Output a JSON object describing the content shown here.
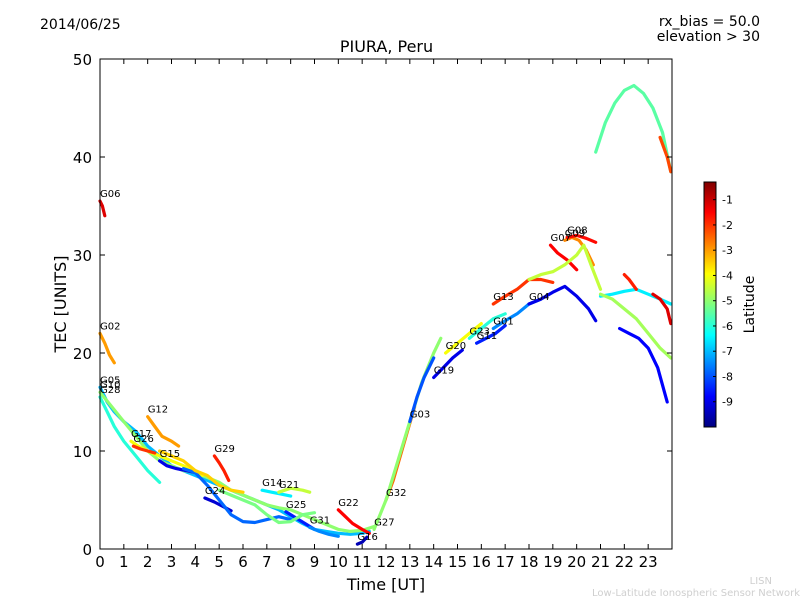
{
  "header": {
    "date": "2014/06/25",
    "title": "PIURA, Peru",
    "rx_bias": "rx_bias = 50.0",
    "elevation": "elevation > 30"
  },
  "credit": {
    "line1": "LISN",
    "line2": "Low-Latitude Ionospheric Sensor Network"
  },
  "colors": {
    "colormap": [
      "#00007f",
      "#0000ff",
      "#007fff",
      "#00ffff",
      "#7fff7f",
      "#ffff00",
      "#ff7f00",
      "#ff0000",
      "#7f0000"
    ]
  },
  "chart_data": {
    "type": "line",
    "title": "PIURA, Peru",
    "xlabel": "Time [UT]",
    "ylabel": "TEC [UNITS]",
    "xlim": [
      0,
      24
    ],
    "ylim": [
      0,
      50
    ],
    "xticks": [
      "0",
      "1",
      "2",
      "3",
      "4",
      "5",
      "6",
      "7",
      "8",
      "9",
      "10",
      "11",
      "12",
      "13",
      "14",
      "15",
      "16",
      "17",
      "18",
      "19",
      "20",
      "21",
      "22",
      "23"
    ],
    "yticks": [
      "0",
      "10",
      "20",
      "30",
      "40",
      "50"
    ],
    "colorbar": {
      "label": "Latitude",
      "range": [
        -10,
        -0.3
      ],
      "ticks": [
        "-1",
        "-2",
        "-3",
        "-4",
        "-5",
        "-6",
        "-7",
        "-8",
        "-9"
      ]
    },
    "series": [
      {
        "name": "G06",
        "lat": -1.2,
        "x": [
          0.0,
          0.1,
          0.2
        ],
        "y": [
          35.5,
          35.0,
          34.0
        ]
      },
      {
        "name": "G02",
        "lat": -3.0,
        "x": [
          0.0,
          0.2,
          0.4,
          0.6
        ],
        "y": [
          22.0,
          21.0,
          19.8,
          19.0
        ]
      },
      {
        "name": "G05",
        "lat": -7.0,
        "x": [
          0.0,
          0.3,
          0.6,
          1.0,
          1.5,
          2.0,
          2.5,
          3.0,
          3.5,
          4.0,
          4.5,
          5.0,
          5.5,
          6.0,
          6.5,
          7.0,
          7.5,
          8.0,
          8.5,
          9.0,
          9.5,
          10.0,
          10.5,
          11.0,
          11.3
        ],
        "y": [
          16.5,
          15.0,
          14.0,
          13.0,
          12.0,
          10.5,
          9.5,
          8.5,
          8.0,
          7.5,
          7.0,
          6.5,
          6.0,
          5.5,
          5.0,
          4.5,
          4.0,
          3.3,
          2.6,
          2.0,
          1.8,
          1.6,
          1.5,
          1.6,
          1.8
        ]
      },
      {
        "name": "G10",
        "lat": -5.0,
        "x": [
          0.0,
          0.5,
          1.0,
          1.5,
          2.0,
          2.5,
          3.0,
          3.5,
          4.0,
          4.5,
          5.0,
          5.5,
          6.0,
          6.5,
          7.0,
          7.5,
          8.0,
          8.5,
          9.0,
          9.5,
          10.0,
          10.5,
          11.0,
          11.5
        ],
        "y": [
          16.0,
          14.5,
          13.0,
          11.5,
          10.0,
          9.0,
          8.5,
          8.0,
          7.8,
          7.3,
          6.8,
          6.0,
          5.5,
          5.0,
          4.5,
          4.2,
          4.0,
          3.5,
          3.0,
          2.5,
          2.0,
          1.8,
          1.9,
          2.3
        ]
      },
      {
        "name": "G28",
        "lat": -6.0,
        "x": [
          0.0,
          0.3,
          0.6,
          1.0,
          1.5,
          2.0,
          2.5
        ],
        "y": [
          15.5,
          14.0,
          12.5,
          11.0,
          9.5,
          8.0,
          6.8
        ]
      },
      {
        "name": "G12",
        "lat": -3.0,
        "x": [
          2.0,
          2.3,
          2.6,
          3.0,
          3.3
        ],
        "y": [
          13.5,
          12.5,
          11.5,
          11.0,
          10.5
        ]
      },
      {
        "name": "G17",
        "lat": -4.0,
        "x": [
          1.3,
          1.6,
          2.0,
          2.5,
          3.0,
          3.5,
          4.0,
          4.3
        ],
        "y": [
          11.0,
          10.5,
          10.0,
          9.5,
          9.0,
          8.5,
          8.0,
          7.5
        ]
      },
      {
        "name": "G26",
        "lat": -2.0,
        "x": [
          1.4,
          1.7,
          2.0,
          2.3
        ],
        "y": [
          10.5,
          10.2,
          10.0,
          9.8
        ]
      },
      {
        "name": "G15",
        "lat": -9.0,
        "x": [
          2.5,
          2.8,
          3.2,
          3.6,
          4.0
        ],
        "y": [
          9.0,
          8.5,
          8.2,
          8.0,
          7.8
        ]
      },
      {
        "name": "G29",
        "lat": -1.8,
        "x": [
          4.8,
          5.0,
          5.2,
          5.4
        ],
        "y": [
          9.5,
          8.8,
          8.0,
          7.0
        ]
      },
      {
        "name": "G24",
        "lat": -9.2,
        "x": [
          4.4,
          4.8,
          5.2,
          5.5
        ],
        "y": [
          5.2,
          4.8,
          4.3,
          3.9
        ]
      },
      {
        "name": "G14",
        "lat": -6.5,
        "x": [
          6.8,
          7.2,
          7.6,
          8.0
        ],
        "y": [
          6.0,
          5.8,
          5.6,
          5.4
        ]
      },
      {
        "name": "G21",
        "lat": -4.5,
        "x": [
          7.5,
          8.0,
          8.5,
          8.8
        ],
        "y": [
          5.8,
          6.2,
          6.0,
          5.8
        ]
      },
      {
        "name": "G25",
        "lat": -8.5,
        "x": [
          7.8,
          8.2,
          8.6,
          9.0
        ],
        "y": [
          3.8,
          3.2,
          2.6,
          2.0
        ]
      },
      {
        "name": "G31",
        "lat": -7.5,
        "x": [
          8.8,
          9.2,
          9.6,
          10.0
        ],
        "y": [
          2.2,
          1.8,
          1.5,
          1.3
        ]
      },
      {
        "name": "G22",
        "lat": -1.5,
        "x": [
          10.0,
          10.3,
          10.6,
          11.0,
          11.3
        ],
        "y": [
          4.0,
          3.3,
          2.6,
          2.0,
          1.6
        ]
      },
      {
        "name": "G16",
        "lat": -9.5,
        "x": [
          10.8,
          11.0,
          11.2
        ],
        "y": [
          0.5,
          0.7,
          1.2
        ]
      },
      {
        "name": "G32",
        "lat": -2.5,
        "x": [
          12.0,
          12.3,
          12.6,
          12.9,
          13.2
        ],
        "y": [
          5.0,
          7.0,
          9.5,
          12.0,
          14.5
        ]
      },
      {
        "name": "G27",
        "lat": -5.0,
        "x": [
          11.5,
          12.0,
          12.5,
          13.0,
          13.5,
          14.0,
          14.3
        ],
        "y": [
          2.0,
          5.0,
          9.0,
          13.0,
          17.0,
          20.0,
          21.5
        ]
      },
      {
        "name": "G03",
        "lat": -8.0,
        "x": [
          13.0,
          13.3,
          13.6,
          14.0
        ],
        "y": [
          13.0,
          15.5,
          17.5,
          19.5
        ]
      },
      {
        "name": "G19",
        "lat": -9.0,
        "x": [
          14.0,
          14.4,
          14.8,
          15.2
        ],
        "y": [
          17.5,
          18.5,
          19.5,
          20.3
        ]
      },
      {
        "name": "G20",
        "lat": -4.0,
        "x": [
          14.5,
          15.0,
          15.5,
          16.0
        ],
        "y": [
          20.0,
          21.0,
          22.0,
          23.0
        ]
      },
      {
        "name": "G23",
        "lat": -6.0,
        "x": [
          15.5,
          16.0,
          16.5,
          17.0
        ],
        "y": [
          21.5,
          22.5,
          23.5,
          24.0
        ]
      },
      {
        "name": "G11",
        "lat": -8.5,
        "x": [
          15.8,
          16.2,
          16.6,
          17.0
        ],
        "y": [
          21.0,
          21.5,
          22.0,
          22.8
        ]
      },
      {
        "name": "G01",
        "lat": -7.5,
        "x": [
          16.5,
          17.0,
          17.5,
          18.0,
          18.5
        ],
        "y": [
          22.5,
          23.3,
          24.0,
          25.0,
          25.5
        ]
      },
      {
        "name": "G13",
        "lat": -2.0,
        "x": [
          16.5,
          17.0,
          17.5,
          18.0,
          18.5,
          19.0
        ],
        "y": [
          25.0,
          25.8,
          26.5,
          27.5,
          27.5,
          27.2
        ]
      },
      {
        "name": "G07",
        "lat": -1.5,
        "x": [
          18.9,
          19.2,
          19.6,
          20.0
        ],
        "y": [
          31.0,
          30.2,
          29.5,
          28.5
        ]
      },
      {
        "name": "G09",
        "lat": -2.8,
        "x": [
          19.5,
          19.8,
          20.1,
          20.4,
          20.7
        ],
        "y": [
          31.5,
          31.8,
          31.5,
          30.5,
          29.0
        ]
      },
      {
        "name": "G08",
        "lat": -1.6,
        "x": [
          19.6,
          20.0,
          20.4,
          20.8
        ],
        "y": [
          31.8,
          32.0,
          31.7,
          31.3
        ]
      },
      {
        "name": "G04",
        "lat": -9.0,
        "x": [
          18.0,
          18.5,
          19.0,
          19.5,
          20.0,
          20.5,
          20.8
        ],
        "y": [
          25.0,
          25.5,
          26.2,
          26.8,
          25.8,
          24.5,
          23.3
        ]
      },
      {
        "name": "",
        "lat": -5.5,
        "x": [
          20.8,
          21.2,
          21.6,
          22.0,
          22.4,
          22.8,
          23.2,
          23.6,
          23.95
        ],
        "y": [
          40.5,
          43.5,
          45.5,
          46.8,
          47.3,
          46.5,
          45.0,
          42.5,
          38.5
        ]
      },
      {
        "name": "",
        "lat": -4.5,
        "x": [
          18.0,
          18.5,
          19.0,
          19.5,
          20.0,
          20.3,
          20.6,
          21.0
        ],
        "y": [
          27.5,
          28.0,
          28.3,
          29.0,
          30.0,
          31.0,
          29.0,
          26.5
        ]
      },
      {
        "name": "",
        "lat": -6.5,
        "x": [
          21.0,
          21.5,
          22.0,
          22.5,
          23.0,
          23.5,
          23.95
        ],
        "y": [
          25.8,
          26.0,
          26.3,
          26.5,
          26.0,
          25.5,
          25.0
        ]
      },
      {
        "name": "",
        "lat": -4.8,
        "x": [
          21.0,
          21.5,
          22.0,
          22.5,
          23.0,
          23.5,
          23.95
        ],
        "y": [
          26.0,
          25.5,
          24.5,
          23.5,
          22.0,
          20.5,
          19.5
        ]
      },
      {
        "name": "",
        "lat": -8.8,
        "x": [
          21.8,
          22.2,
          22.6,
          23.0,
          23.4,
          23.8
        ],
        "y": [
          22.5,
          22.0,
          21.5,
          20.5,
          18.5,
          15.0
        ]
      },
      {
        "name": "",
        "lat": -1.8,
        "x": [
          22.0,
          22.2,
          22.5
        ],
        "y": [
          28.0,
          27.5,
          26.5
        ]
      },
      {
        "name": "",
        "lat": -1.2,
        "x": [
          23.2,
          23.5,
          23.8,
          23.95
        ],
        "y": [
          26.0,
          25.5,
          24.5,
          23.0
        ]
      },
      {
        "name": "",
        "lat": -2.2,
        "x": [
          23.5,
          23.8,
          23.95
        ],
        "y": [
          42.0,
          40.0,
          38.5
        ]
      },
      {
        "name": "",
        "lat": -7.8,
        "x": [
          3.5,
          4.0,
          4.5,
          5.0,
          5.5,
          6.0,
          6.5,
          7.0,
          7.5,
          8.0
        ],
        "y": [
          8.2,
          7.8,
          6.5,
          5.0,
          3.5,
          2.8,
          2.7,
          3.0,
          3.3,
          3.0
        ]
      },
      {
        "name": "",
        "lat": -5.2,
        "x": [
          5.0,
          5.5,
          6.0,
          6.5,
          7.0,
          7.5,
          8.0,
          8.5,
          9.0
        ],
        "y": [
          6.0,
          5.5,
          5.0,
          4.5,
          3.5,
          2.7,
          2.8,
          3.5,
          3.7
        ]
      },
      {
        "name": "",
        "lat": -3.5,
        "x": [
          2.5,
          3.0,
          3.5,
          4.0,
          4.5,
          5.0,
          5.5,
          6.0
        ],
        "y": [
          10.0,
          9.5,
          9.0,
          8.0,
          7.5,
          6.5,
          6.0,
          5.8
        ]
      }
    ]
  }
}
